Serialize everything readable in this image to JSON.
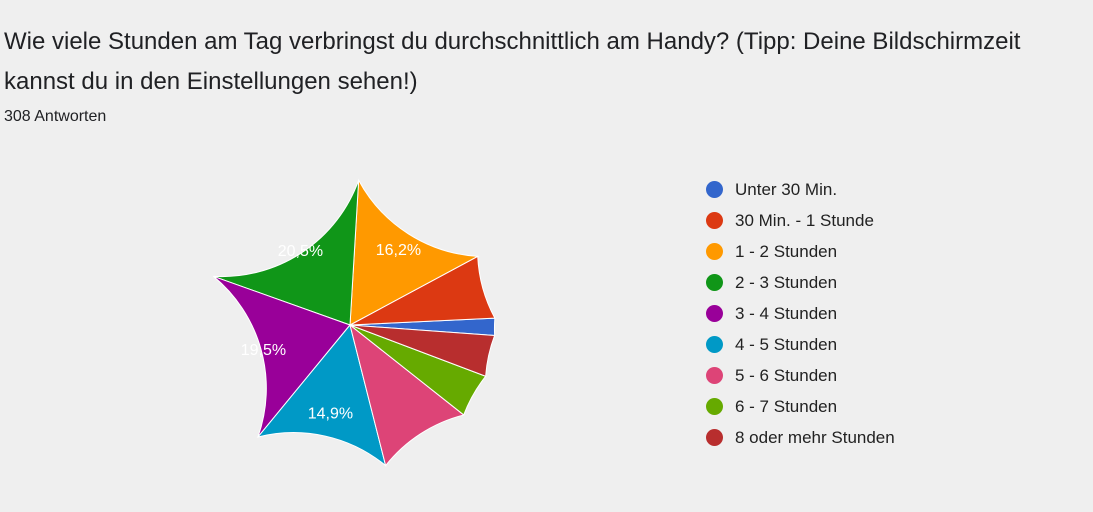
{
  "question": {
    "title": "Wie viele Stunden am Tag verbringst du durchschnittlich am Handy? (Tipp: Deine Bildschirmzeit kannst du in den Einstellungen sehen!)",
    "responses": "308 Antworten"
  },
  "chart_data": {
    "type": "pie",
    "categories": [
      "Unter 30 Min.",
      "30 Min. - 1 Stunde",
      "1 - 2 Stunden",
      "2 - 3 Stunden",
      "3 - 4 Stunden",
      "4 - 5 Stunden",
      "5 - 6 Stunden",
      "6 - 7 Stunden",
      "8 oder mehr Stunden"
    ],
    "values": [
      1.9,
      7.1,
      16.2,
      20.5,
      19.5,
      14.9,
      10.4,
      4.9,
      4.6
    ],
    "data_labels": [
      "",
      "",
      "16,2%",
      "20,5%",
      "19,5%",
      "14,9%",
      "",
      "",
      ""
    ],
    "colors": [
      "#3366cc",
      "#dc3912",
      "#ff9900",
      "#109618",
      "#990099",
      "#0099c6",
      "#dd4477",
      "#66aa00",
      "#b82e2e"
    ],
    "start": "clockwise from right, first slice just below 3 o'clock",
    "legend_position": "right"
  }
}
